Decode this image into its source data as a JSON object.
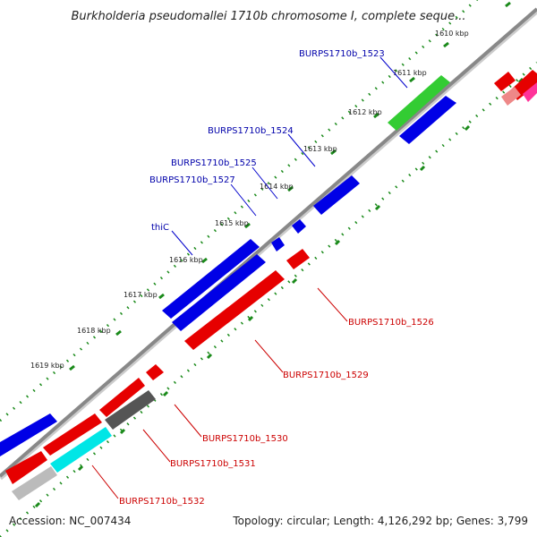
{
  "title": "Burkholderia pseudomallei 1710b chromosome I, complete seque...",
  "footer": {
    "accession": "Accession: NC_007434",
    "summary": "Topology: circular; Length: 4,126,292 bp; Genes: 3,799"
  },
  "ticks": [
    "1610 kbp",
    "1611 kbp",
    "1612 kbp",
    "1613 kbp",
    "1614 kbp",
    "1615 kbp",
    "1616 kbp",
    "1617 kbp",
    "1618 kbp",
    "1619 kbp"
  ],
  "forward_labels": [
    "BURPS1710b_1523",
    "BURPS1710b_1524",
    "BURPS1710b_1525",
    "BURPS1710b_1527",
    "thiC"
  ],
  "reverse_labels": [
    "BURPS1710b_1526",
    "BURPS1710b_1529",
    "BURPS1710b_1530",
    "BURPS1710b_1531",
    "BURPS1710b_1532"
  ],
  "colors": {
    "forward_cds": "#0000e6",
    "forward_rna": "#33cc33",
    "reverse_cds": "#e60000",
    "reverse_other": "#555555",
    "reverse_cyan": "#00e6e6",
    "reverse_gray": "#bbbbbb",
    "pink": "#ff3399",
    "backbone": "#888888",
    "tick": "#1a8a1a",
    "forward_label": "#0000aa",
    "reverse_label": "#cc0000"
  }
}
